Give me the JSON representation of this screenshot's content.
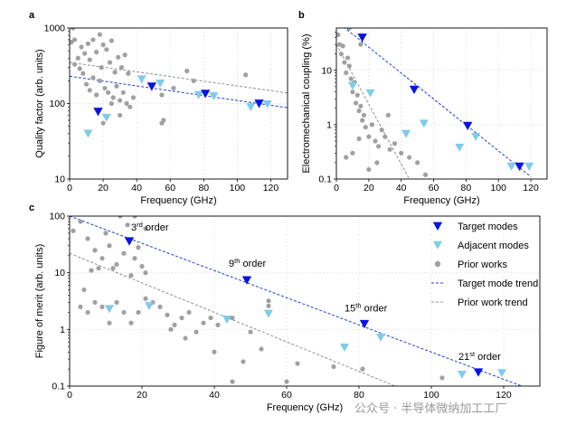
{
  "watermark": "公众号 · 半导体微纳加工工厂",
  "colors": {
    "target": "#0a14e0",
    "adjacent": "#7fcbea",
    "prior": "#a0a0a0",
    "target_trend": "#1f3fd6",
    "prior_trend": "#909090",
    "grid": "#e3e3e3"
  },
  "chart_data": [
    {
      "panel": "a",
      "type": "scatter",
      "ylog": true,
      "xlabel": "Frequency (GHz)",
      "ylabel": "Quality factor (arb. units)",
      "xlim": [
        0,
        130
      ],
      "ylim": [
        10,
        1000
      ],
      "xticks": [
        0,
        20,
        40,
        60,
        80,
        100,
        120
      ],
      "yticks": [
        10,
        100,
        1000
      ],
      "series": [
        {
          "name": "Target modes",
          "points": [
            [
              17,
              78
            ],
            [
              49,
              168
            ],
            [
              81,
              135
            ],
            [
              113,
              100
            ]
          ]
        },
        {
          "name": "Adjacent modes",
          "points": [
            [
              11,
              40
            ],
            [
              22,
              65
            ],
            [
              43,
              210
            ],
            [
              54,
              185
            ],
            [
              77,
              130
            ],
            [
              86,
              125
            ],
            [
              108,
              90
            ],
            [
              118,
              98
            ]
          ]
        },
        {
          "name": "Prior works",
          "points": [
            [
              1,
              650
            ],
            [
              3,
              700
            ],
            [
              5,
              400
            ],
            [
              7,
              560
            ],
            [
              9,
              460
            ],
            [
              11,
              620
            ],
            [
              12,
              380
            ],
            [
              14,
              700
            ],
            [
              16,
              480
            ],
            [
              18,
              820
            ],
            [
              19,
              300
            ],
            [
              20,
              600
            ],
            [
              22,
              520
            ],
            [
              24,
              350
            ],
            [
              25,
              680
            ],
            [
              27,
              260
            ],
            [
              29,
              410
            ],
            [
              31,
              300
            ],
            [
              33,
              440
            ],
            [
              35,
              250
            ],
            [
              3,
              330
            ],
            [
              6,
              290
            ],
            [
              8,
              250
            ],
            [
              10,
              180
            ],
            [
              12,
              150
            ],
            [
              14,
              220
            ],
            [
              16,
              130
            ],
            [
              18,
              200
            ],
            [
              21,
              160
            ],
            [
              23,
              140
            ],
            [
              26,
              120
            ],
            [
              28,
              170
            ],
            [
              30,
              110
            ],
            [
              32,
              140
            ],
            [
              34,
              100
            ],
            [
              36,
              90
            ],
            [
              20,
              55
            ],
            [
              30,
              70
            ],
            [
              55,
              130
            ],
            [
              56,
              60
            ],
            [
              55,
              55
            ],
            [
              62,
              160
            ],
            [
              70,
              270
            ],
            [
              74,
              200
            ],
            [
              105,
              240
            ],
            [
              2,
              1000
            ],
            [
              38,
              120
            ],
            [
              25,
              100
            ]
          ]
        },
        {
          "name": "Target mode trend",
          "line": [
            [
              0,
              230
            ],
            [
              130,
              88
            ]
          ]
        },
        {
          "name": "Prior work trend",
          "line": [
            [
              0,
              350
            ],
            [
              130,
              138
            ]
          ]
        }
      ]
    },
    {
      "panel": "b",
      "type": "scatter",
      "ylog": true,
      "xlabel": "Frequency (GHz)",
      "ylabel": "Electromechanical coupling (%)",
      "xlim": [
        0,
        130
      ],
      "ylim": [
        0.1,
        60
      ],
      "xticks": [
        0,
        20,
        40,
        60,
        80,
        100,
        120
      ],
      "yticks": [
        0.1,
        1,
        10
      ],
      "series": [
        {
          "name": "Target modes",
          "points": [
            [
              16,
              40
            ],
            [
              48,
              4.4
            ],
            [
              81,
              0.95
            ],
            [
              113,
              0.17
            ]
          ]
        },
        {
          "name": "Adjacent modes",
          "points": [
            [
              10,
              5.2
            ],
            [
              21,
              3.8
            ],
            [
              43,
              0.68
            ],
            [
              54,
              1.05
            ],
            [
              76,
              0.38
            ],
            [
              86,
              0.6
            ],
            [
              108,
              0.17
            ],
            [
              119,
              0.17
            ]
          ]
        },
        {
          "name": "Prior works",
          "points": [
            [
              1,
              45
            ],
            [
              2,
              30
            ],
            [
              3,
              20
            ],
            [
              4,
              28
            ],
            [
              5,
              14
            ],
            [
              6,
              9
            ],
            [
              7,
              17
            ],
            [
              8,
              12
            ],
            [
              9,
              7
            ],
            [
              10,
              4
            ],
            [
              11,
              6
            ],
            [
              12,
              2.5
            ],
            [
              13,
              3.5
            ],
            [
              14,
              1.8
            ],
            [
              15,
              2.2
            ],
            [
              16,
              1.2
            ],
            [
              17,
              1.5
            ],
            [
              18,
              0.9
            ],
            [
              20,
              0.6
            ],
            [
              22,
              1.0
            ],
            [
              24,
              0.5
            ],
            [
              26,
              0.4
            ],
            [
              28,
              0.8
            ],
            [
              30,
              0.6
            ],
            [
              33,
              0.35
            ],
            [
              36,
              0.45
            ],
            [
              40,
              0.3
            ],
            [
              45,
              0.25
            ],
            [
              50,
              0.2
            ],
            [
              55,
              0.12
            ],
            [
              6,
              0.25
            ],
            [
              10,
              0.3
            ],
            [
              20,
              0.15
            ],
            [
              25,
              0.2
            ],
            [
              14,
              0.55
            ],
            [
              32,
              1.5
            ],
            [
              8,
              60
            ],
            [
              15,
              30
            ]
          ]
        },
        {
          "name": "Target mode trend",
          "line": [
            [
              0,
              80
            ],
            [
              120,
              0.11
            ]
          ]
        },
        {
          "name": "Prior work trend",
          "line": [
            [
              0,
              30
            ],
            [
              45,
              0.1
            ]
          ]
        }
      ]
    },
    {
      "panel": "c",
      "type": "scatter",
      "ylog": true,
      "xlabel": "Frequency (GHz)",
      "ylabel": "Figure of merit (arb. units)",
      "xlim": [
        0,
        130
      ],
      "ylim": [
        0.1,
        100
      ],
      "xticks": [
        0,
        20,
        40,
        60,
        80,
        100,
        120
      ],
      "yticks": [
        0.1,
        1,
        10,
        100
      ],
      "legend": [
        "Target modes",
        "Adjacent modes",
        "Prior works",
        "Target mode trend",
        "Prior work trend"
      ],
      "annotations": [
        {
          "base": "3",
          "sup": "rd",
          "rest": " order",
          "x": 16,
          "y": 36
        },
        {
          "base": "9",
          "sup": "th",
          "rest": " order",
          "x": 49,
          "y": 7.4
        },
        {
          "base": "15",
          "sup": "th",
          "rest": " order",
          "x": 81,
          "y": 1.25
        },
        {
          "base": "21",
          "sup": "st",
          "rest": " order",
          "x": 113,
          "y": 0.175
        }
      ],
      "series": [
        {
          "name": "Target modes",
          "points": [
            [
              16.5,
              36
            ],
            [
              49,
              7.4
            ],
            [
              81.5,
              1.25
            ],
            [
              113,
              0.175
            ]
          ]
        },
        {
          "name": "Adjacent modes",
          "points": [
            [
              11,
              2.3
            ],
            [
              22,
              2.6
            ],
            [
              43.5,
              1.5
            ],
            [
              55,
              1.9
            ],
            [
              76,
              0.48
            ],
            [
              86,
              0.72
            ],
            [
              108.5,
              0.16
            ],
            [
              119.5,
              0.17
            ]
          ]
        },
        {
          "name": "Prior works",
          "points": [
            [
              1,
              55
            ],
            [
              3,
              80
            ],
            [
              5,
              40
            ],
            [
              7,
              25
            ],
            [
              9,
              18
            ],
            [
              11,
              30
            ],
            [
              13,
              14
            ],
            [
              15,
              22
            ],
            [
              17,
              9
            ],
            [
              18,
              18
            ],
            [
              19,
              28
            ],
            [
              20,
              13
            ],
            [
              21,
              10
            ],
            [
              14,
              100
            ],
            [
              16,
              70
            ],
            [
              18,
              100
            ],
            [
              21,
              60
            ],
            [
              10,
              50
            ],
            [
              12,
              12
            ],
            [
              8,
              12
            ],
            [
              6,
              11
            ],
            [
              4,
              5
            ],
            [
              3,
              2.5
            ],
            [
              5,
              2
            ],
            [
              7,
              3
            ],
            [
              9,
              2.5
            ],
            [
              11,
              1.3
            ],
            [
              13,
              3
            ],
            [
              15,
              2
            ],
            [
              17,
              1.3
            ],
            [
              19,
              2
            ],
            [
              21,
              3.5
            ],
            [
              23,
              3
            ],
            [
              25,
              2.5
            ],
            [
              27,
              1.8
            ],
            [
              29,
              1.2
            ],
            [
              31,
              1.6
            ],
            [
              33,
              2
            ],
            [
              35,
              0.9
            ],
            [
              37,
              1.3
            ],
            [
              39,
              1.6
            ],
            [
              41,
              1.2
            ],
            [
              45,
              1.6
            ],
            [
              50,
              0.9
            ],
            [
              55,
              2.6
            ],
            [
              55,
              3.2
            ],
            [
              53,
              0.45
            ],
            [
              48,
              0.27
            ],
            [
              60,
              0.12
            ],
            [
              63,
              0.25
            ],
            [
              73,
              0.22
            ],
            [
              81,
              0.2
            ],
            [
              103,
              0.14
            ],
            [
              45,
              0.12
            ],
            [
              40,
              0.4
            ],
            [
              28,
              1
            ],
            [
              32,
              0.7
            ]
          ]
        },
        {
          "name": "Target mode trend",
          "line": [
            [
              0,
              100
            ],
            [
              125,
              0.1
            ]
          ]
        },
        {
          "name": "Prior work trend",
          "line": [
            [
              0,
              22
            ],
            [
              90,
              0.1
            ]
          ]
        }
      ]
    }
  ]
}
